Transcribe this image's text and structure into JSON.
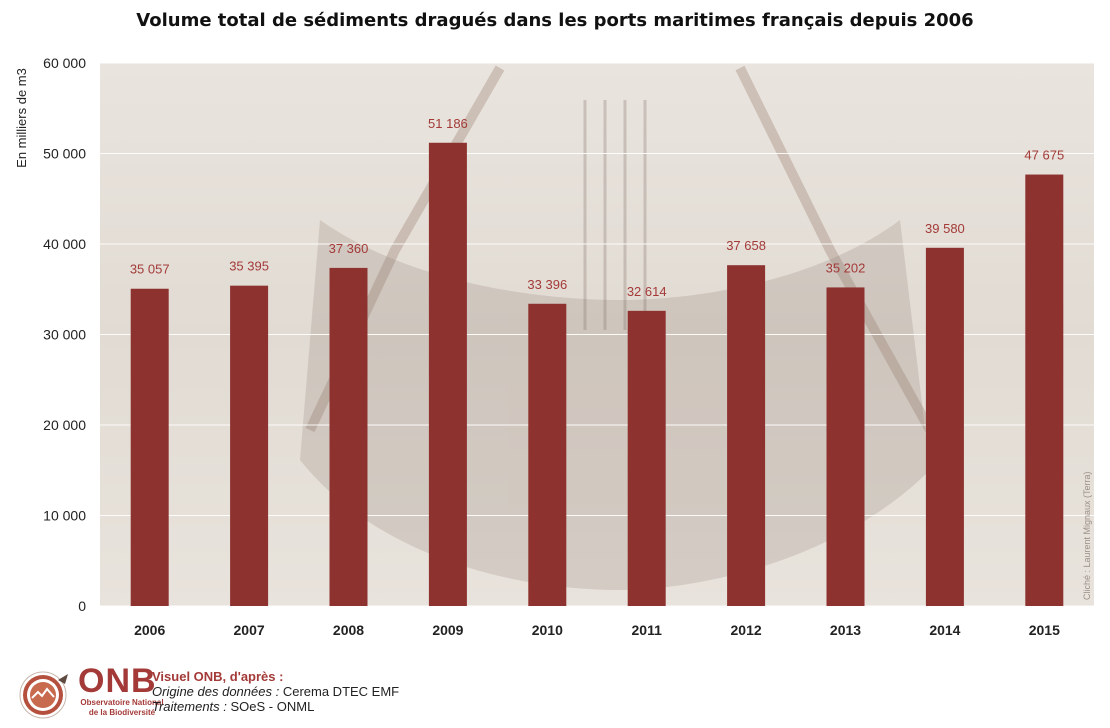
{
  "chart_data": {
    "type": "bar",
    "title": "Volume total de sédiments dragués dans les ports maritimes français depuis 2006",
    "ylabel": "En milliers de m3",
    "xlabel": "",
    "ylim": [
      0,
      60000
    ],
    "yticks": [
      0,
      10000,
      20000,
      30000,
      40000,
      50000,
      60000
    ],
    "ytick_labels": [
      "0",
      "10 000",
      "20 000",
      "30 000",
      "40 000",
      "50 000",
      "60 000"
    ],
    "categories": [
      "2006",
      "2007",
      "2008",
      "2009",
      "2010",
      "2011",
      "2012",
      "2013",
      "2014",
      "2015"
    ],
    "values": [
      35057,
      35395,
      37360,
      51186,
      33396,
      32614,
      37658,
      35202,
      39580,
      47675
    ],
    "value_labels": [
      "35 057",
      "35 395",
      "37 360",
      "51 186",
      "33 396",
      "32 614",
      "37 658",
      "35 202",
      "39 580",
      "47 675"
    ],
    "bar_color": "#8e3230",
    "label_color": "#a33a38",
    "grid": true,
    "legend": "none"
  },
  "photo_credit": "Cliché : Laurent Mignaux (Terra)",
  "footer": {
    "logo_acronym": "ONB",
    "logo_sub1": "Observatoire National",
    "logo_sub2": "de la Biodiversité",
    "visuel": "Visuel ONB, d'après :",
    "origine_label": "Origine des données :",
    "origine_value": "Cerema DTEC EMF",
    "traitements_label": "Traitements :",
    "traitements_value": "SOeS - ONML"
  }
}
